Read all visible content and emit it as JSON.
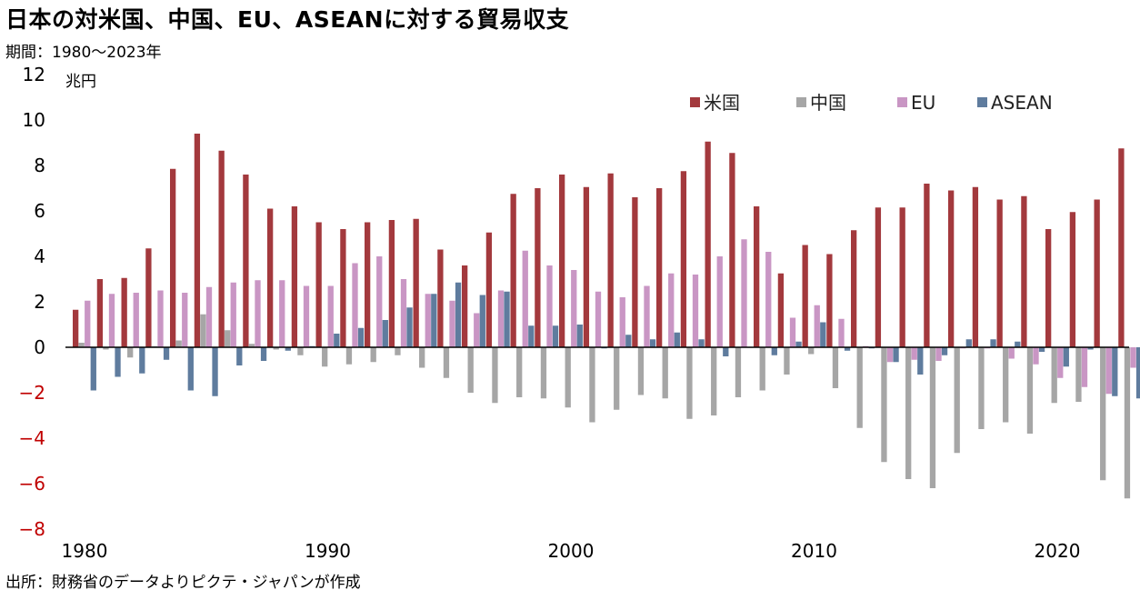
{
  "title": "日本の対米国、中国、EU、ASEANに対する貿易収支",
  "period": "期間：1980～2023年",
  "source": "出所：財務省のデータよりピクテ・ジャパンが作成",
  "unit_label": "兆円",
  "colors": {
    "us": "#a3393d",
    "china": "#a6a6a6",
    "eu": "#c996c4",
    "asean": "#5f7c9e",
    "negative_tick": "#c00000",
    "positive_tick": "#000000",
    "axis": "#000000"
  },
  "chart_data": {
    "type": "bar",
    "ylim": [
      -8,
      12
    ],
    "yticks": [
      "12",
      "10",
      "8",
      "6",
      "4",
      "2",
      "0",
      "−2",
      "−4",
      "−6",
      "−8"
    ],
    "xticks": [
      "1980",
      "1990",
      "2000",
      "2010",
      "2020"
    ],
    "grid": false,
    "legend_position": "top-right",
    "categories": [
      "1980",
      "1981",
      "1982",
      "1983",
      "1984",
      "1985",
      "1986",
      "1987",
      "1988",
      "1989",
      "1990",
      "1991",
      "1992",
      "1993",
      "1994",
      "1995",
      "1996",
      "1997",
      "1998",
      "1999",
      "2000",
      "2001",
      "2002",
      "2003",
      "2004",
      "2005",
      "2006",
      "2007",
      "2008",
      "2009",
      "2010",
      "2011",
      "2012",
      "2013",
      "2014",
      "2015",
      "2016",
      "2017",
      "2018",
      "2019",
      "2020",
      "2021",
      "2022",
      "2023"
    ],
    "series": [
      {
        "name": "米国",
        "color_key": "us",
        "values": [
          1.65,
          3.0,
          3.05,
          4.35,
          7.85,
          9.4,
          8.65,
          7.6,
          6.1,
          6.2,
          5.5,
          5.2,
          5.5,
          5.6,
          5.65,
          4.3,
          3.6,
          5.05,
          6.75,
          7.0,
          7.6,
          7.05,
          7.65,
          6.6,
          7.0,
          7.75,
          9.05,
          8.55,
          6.2,
          3.25,
          4.5,
          4.1,
          5.15,
          6.15,
          6.15,
          7.2,
          6.9,
          7.05,
          6.5,
          6.65,
          5.2,
          5.95,
          6.5,
          8.75
        ]
      },
      {
        "name": "中国",
        "color_key": "china",
        "values": [
          0.2,
          -0.1,
          -0.45,
          0.05,
          0.3,
          1.45,
          0.75,
          0.15,
          -0.1,
          -0.35,
          -0.85,
          -0.75,
          -0.65,
          -0.35,
          -0.9,
          -1.35,
          -2.0,
          -2.45,
          -2.2,
          -2.25,
          -2.65,
          -3.3,
          -2.75,
          -2.1,
          -2.25,
          -3.15,
          -3.0,
          -2.2,
          -1.9,
          -1.2,
          -0.3,
          -1.8,
          -3.55,
          -5.05,
          -5.8,
          -6.2,
          -4.65,
          -3.6,
          -3.3,
          -3.8,
          -2.45,
          -2.4,
          -5.85,
          -6.65
        ]
      },
      {
        "name": "EU",
        "color_key": "eu",
        "values": [
          2.05,
          2.35,
          2.4,
          2.5,
          2.4,
          2.65,
          2.85,
          2.95,
          2.95,
          2.7,
          2.7,
          3.7,
          4.0,
          3.0,
          2.35,
          2.05,
          1.5,
          2.5,
          4.25,
          3.6,
          3.4,
          2.45,
          2.2,
          2.7,
          3.25,
          3.2,
          4.0,
          4.75,
          4.2,
          1.3,
          1.85,
          1.25,
          0.05,
          -0.65,
          -0.55,
          -0.6,
          -0.05,
          -0.05,
          -0.5,
          -0.75,
          -1.35,
          -1.75,
          -2.05,
          -0.9
        ]
      },
      {
        "name": "ASEAN",
        "color_key": "asean",
        "values": [
          -1.9,
          -1.3,
          -1.15,
          -0.55,
          -1.9,
          -2.15,
          -0.8,
          -0.6,
          -0.15,
          0.05,
          0.6,
          0.85,
          1.2,
          1.75,
          2.35,
          2.85,
          2.3,
          2.45,
          0.95,
          0.95,
          1.0,
          -0.05,
          0.55,
          0.35,
          0.65,
          0.35,
          -0.4,
          0.0,
          -0.35,
          0.25,
          1.1,
          -0.15,
          -0.05,
          -0.65,
          -1.2,
          -0.35,
          0.35,
          0.35,
          0.25,
          -0.2,
          -0.85,
          -0.1,
          -2.15,
          -2.25
        ]
      }
    ]
  }
}
